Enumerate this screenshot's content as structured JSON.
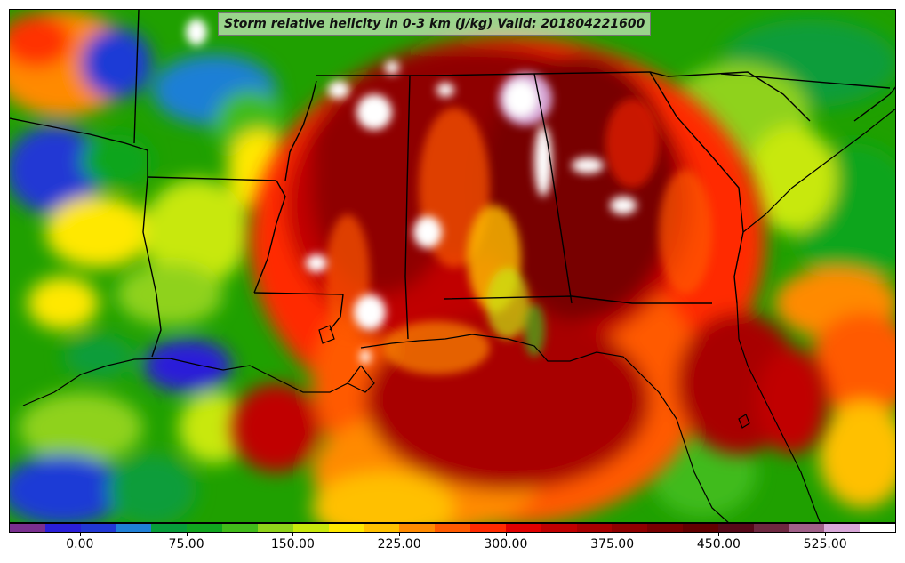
{
  "title": "Storm relative helicity in 0-3 km (J/kg) Valid: 201804221600",
  "colorbar": {
    "ticks": [
      "0.00",
      "75.00",
      "150.00",
      "225.00",
      "300.00",
      "375.00",
      "450.00",
      "525.00"
    ],
    "tick_values": [
      0,
      75,
      150,
      225,
      300,
      375,
      450,
      525
    ],
    "min": -50,
    "max": 575,
    "levels": 25,
    "colors": [
      "#7a2f8f",
      "#2a1fd9",
      "#2138d4",
      "#1f7fd6",
      "#079d3a",
      "#11a51f",
      "#41bb1a",
      "#8fd21a",
      "#c8e80c",
      "#ffe800",
      "#ffc000",
      "#ff8a00",
      "#ff5a00",
      "#ff2a00",
      "#e00000",
      "#c00000",
      "#a80000",
      "#8f0000",
      "#780000",
      "#620000",
      "#560818",
      "#6e2840",
      "#a06088",
      "#d8a8d8",
      "#ffffff"
    ]
  }
}
